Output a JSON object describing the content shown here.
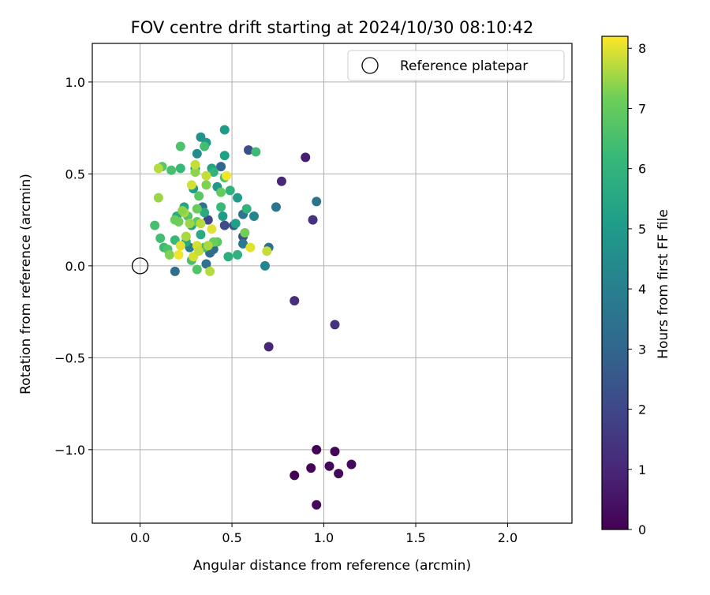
{
  "chart_data": {
    "type": "scatter",
    "title": "FOV centre drift starting at 2024/10/30 08:10:42",
    "xlabel": "Angular distance from reference (arcmin)",
    "ylabel": "Rotation from reference (arcmin)",
    "xlim": [
      -0.26,
      2.35
    ],
    "ylim": [
      -1.4,
      1.21
    ],
    "xticks": [
      0.0,
      0.5,
      1.0,
      1.5,
      2.0
    ],
    "xtick_labels": [
      "0.0",
      "0.5",
      "1.0",
      "1.5",
      "2.0"
    ],
    "yticks": [
      -1.0,
      -0.5,
      0.0,
      0.5,
      1.0
    ],
    "ytick_labels": [
      "−1.0",
      "−0.5",
      "0.0",
      "0.5",
      "1.0"
    ],
    "grid": true,
    "legend": {
      "position": "top-right",
      "entries": [
        {
          "label": "Reference platepar",
          "marker": "open-circle"
        }
      ]
    },
    "colorbar": {
      "label": "Hours from first FF file",
      "colormap": "viridis",
      "range": [
        0,
        8.2
      ],
      "ticks": [
        0,
        1,
        2,
        3,
        4,
        5,
        6,
        7,
        8
      ],
      "tick_labels": [
        "0",
        "1",
        "2",
        "3",
        "4",
        "5",
        "6",
        "7",
        "8"
      ]
    },
    "reference_point": {
      "x": 0.0,
      "y": 0.0,
      "label": "Reference platepar"
    },
    "points": [
      {
        "x": 0.96,
        "y": -1.0,
        "c": 0.05
      },
      {
        "x": 1.06,
        "y": -1.01,
        "c": 0.1
      },
      {
        "x": 0.84,
        "y": -1.14,
        "c": 0.0
      },
      {
        "x": 0.93,
        "y": -1.1,
        "c": 0.08
      },
      {
        "x": 1.03,
        "y": -1.09,
        "c": 0.12
      },
      {
        "x": 1.08,
        "y": -1.13,
        "c": 0.15
      },
      {
        "x": 1.15,
        "y": -1.08,
        "c": 0.18
      },
      {
        "x": 0.96,
        "y": -1.3,
        "c": 0.2
      },
      {
        "x": 0.7,
        "y": -0.44,
        "c": 1.0
      },
      {
        "x": 0.84,
        "y": -0.19,
        "c": 1.2
      },
      {
        "x": 1.06,
        "y": -0.32,
        "c": 1.4
      },
      {
        "x": 0.9,
        "y": 0.59,
        "c": 0.8
      },
      {
        "x": 0.77,
        "y": 0.46,
        "c": 1.0
      },
      {
        "x": 0.94,
        "y": 0.25,
        "c": 1.3
      },
      {
        "x": 0.59,
        "y": 0.63,
        "c": 2.2
      },
      {
        "x": 0.46,
        "y": 0.22,
        "c": 2.1
      },
      {
        "x": 0.37,
        "y": 0.25,
        "c": 2.0
      },
      {
        "x": 0.51,
        "y": 0.22,
        "c": 2.5
      },
      {
        "x": 0.56,
        "y": 0.16,
        "c": 2.3
      },
      {
        "x": 0.96,
        "y": 0.35,
        "c": 3.5
      },
      {
        "x": 0.74,
        "y": 0.32,
        "c": 3.6
      },
      {
        "x": 0.7,
        "y": 0.1,
        "c": 3.4
      },
      {
        "x": 0.19,
        "y": -0.03,
        "c": 3.3
      },
      {
        "x": 0.38,
        "y": 0.07,
        "c": 3.2
      },
      {
        "x": 0.4,
        "y": 0.09,
        "c": 3.3
      },
      {
        "x": 0.44,
        "y": 0.54,
        "c": 3.0
      },
      {
        "x": 0.34,
        "y": 0.32,
        "c": 3.5
      },
      {
        "x": 0.56,
        "y": 0.28,
        "c": 3.6
      },
      {
        "x": 0.36,
        "y": 0.01,
        "c": 3.4
      },
      {
        "x": 0.68,
        "y": 0.0,
        "c": 4.2
      },
      {
        "x": 0.62,
        "y": 0.27,
        "c": 4.3
      },
      {
        "x": 0.56,
        "y": 0.12,
        "c": 3.8
      },
      {
        "x": 0.27,
        "y": 0.1,
        "c": 4.0
      },
      {
        "x": 0.31,
        "y": 0.61,
        "c": 4.5
      },
      {
        "x": 0.33,
        "y": 0.7,
        "c": 4.7
      },
      {
        "x": 0.46,
        "y": 0.74,
        "c": 5.0
      },
      {
        "x": 0.46,
        "y": 0.6,
        "c": 5.2
      },
      {
        "x": 0.39,
        "y": 0.53,
        "c": 5.3
      },
      {
        "x": 0.53,
        "y": 0.37,
        "c": 5.1
      },
      {
        "x": 0.52,
        "y": 0.23,
        "c": 5.2
      },
      {
        "x": 0.45,
        "y": 0.27,
        "c": 5.0
      },
      {
        "x": 0.42,
        "y": 0.43,
        "c": 4.9
      },
      {
        "x": 0.24,
        "y": 0.32,
        "c": 5.4
      },
      {
        "x": 0.2,
        "y": 0.27,
        "c": 5.6
      },
      {
        "x": 0.28,
        "y": 0.22,
        "c": 5.3
      },
      {
        "x": 0.29,
        "y": 0.42,
        "c": 5.0
      },
      {
        "x": 0.3,
        "y": 0.53,
        "c": 4.8
      },
      {
        "x": 0.36,
        "y": 0.67,
        "c": 4.9
      },
      {
        "x": 0.25,
        "y": 0.13,
        "c": 5.5
      },
      {
        "x": 0.33,
        "y": 0.17,
        "c": 5.6
      },
      {
        "x": 0.35,
        "y": 0.29,
        "c": 5.7
      },
      {
        "x": 0.48,
        "y": 0.05,
        "c": 5.8
      },
      {
        "x": 0.53,
        "y": 0.06,
        "c": 5.9
      },
      {
        "x": 0.58,
        "y": 0.31,
        "c": 6.0
      },
      {
        "x": 0.63,
        "y": 0.62,
        "c": 6.3
      },
      {
        "x": 0.49,
        "y": 0.41,
        "c": 5.9
      },
      {
        "x": 0.44,
        "y": 0.32,
        "c": 6.2
      },
      {
        "x": 0.4,
        "y": 0.51,
        "c": 6.0
      },
      {
        "x": 0.35,
        "y": 0.65,
        "c": 6.4
      },
      {
        "x": 0.22,
        "y": 0.65,
        "c": 6.6
      },
      {
        "x": 0.17,
        "y": 0.52,
        "c": 6.5
      },
      {
        "x": 0.22,
        "y": 0.53,
        "c": 6.2
      },
      {
        "x": 0.12,
        "y": 0.54,
        "c": 6.8
      },
      {
        "x": 0.08,
        "y": 0.22,
        "c": 6.5
      },
      {
        "x": 0.11,
        "y": 0.15,
        "c": 6.4
      },
      {
        "x": 0.13,
        "y": 0.1,
        "c": 6.3
      },
      {
        "x": 0.15,
        "y": 0.09,
        "c": 6.6
      },
      {
        "x": 0.19,
        "y": 0.14,
        "c": 6.2
      },
      {
        "x": 0.26,
        "y": 0.27,
        "c": 6.7
      },
      {
        "x": 0.31,
        "y": 0.24,
        "c": 6.9
      },
      {
        "x": 0.32,
        "y": 0.38,
        "c": 6.8
      },
      {
        "x": 0.28,
        "y": 0.03,
        "c": 6.5
      },
      {
        "x": 0.31,
        "y": -0.02,
        "c": 6.7
      },
      {
        "x": 0.35,
        "y": 0.1,
        "c": 6.4
      },
      {
        "x": 0.42,
        "y": 0.13,
        "c": 6.8
      },
      {
        "x": 0.46,
        "y": 0.48,
        "c": 6.6
      },
      {
        "x": 0.57,
        "y": 0.18,
        "c": 7.2
      },
      {
        "x": 0.4,
        "y": 0.13,
        "c": 7.1
      },
      {
        "x": 0.44,
        "y": 0.4,
        "c": 7.0
      },
      {
        "x": 0.36,
        "y": 0.44,
        "c": 7.3
      },
      {
        "x": 0.31,
        "y": 0.31,
        "c": 7.1
      },
      {
        "x": 0.3,
        "y": 0.51,
        "c": 7.4
      },
      {
        "x": 0.21,
        "y": 0.24,
        "c": 7.2
      },
      {
        "x": 0.16,
        "y": 0.06,
        "c": 7.3
      },
      {
        "x": 0.19,
        "y": 0.25,
        "c": 7.1
      },
      {
        "x": 0.1,
        "y": 0.37,
        "c": 7.5
      },
      {
        "x": 0.1,
        "y": 0.53,
        "c": 7.7
      },
      {
        "x": 0.3,
        "y": 0.55,
        "c": 7.8
      },
      {
        "x": 0.24,
        "y": 0.29,
        "c": 7.6
      },
      {
        "x": 0.28,
        "y": 0.44,
        "c": 7.9
      },
      {
        "x": 0.36,
        "y": 0.49,
        "c": 7.8
      },
      {
        "x": 0.33,
        "y": 0.23,
        "c": 7.7
      },
      {
        "x": 0.39,
        "y": 0.2,
        "c": 8.0
      },
      {
        "x": 0.31,
        "y": 0.11,
        "c": 7.9
      },
      {
        "x": 0.25,
        "y": 0.16,
        "c": 7.6
      },
      {
        "x": 0.22,
        "y": 0.11,
        "c": 8.0
      },
      {
        "x": 0.21,
        "y": 0.06,
        "c": 8.1
      },
      {
        "x": 0.29,
        "y": 0.05,
        "c": 7.9
      },
      {
        "x": 0.32,
        "y": 0.08,
        "c": 7.8
      },
      {
        "x": 0.37,
        "y": 0.11,
        "c": 7.6
      },
      {
        "x": 0.38,
        "y": -0.03,
        "c": 7.7
      },
      {
        "x": 0.47,
        "y": 0.49,
        "c": 8.1
      },
      {
        "x": 0.6,
        "y": 0.1,
        "c": 8.0
      },
      {
        "x": 0.69,
        "y": 0.08,
        "c": 7.8
      },
      {
        "x": 0.27,
        "y": 0.23,
        "c": 7.5
      },
      {
        "x": 0.23,
        "y": 0.3,
        "c": 7.4
      }
    ]
  }
}
